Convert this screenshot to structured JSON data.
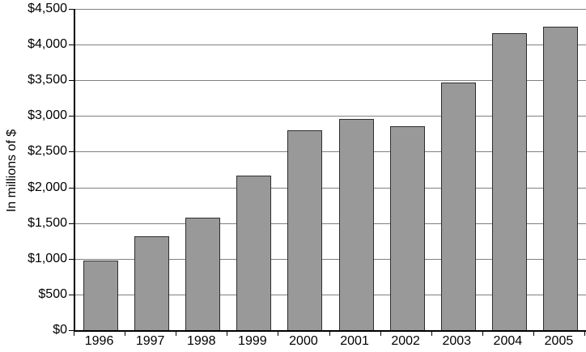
{
  "chart_data": {
    "type": "bar",
    "title": "",
    "xlabel": "",
    "ylabel": "In millions of $",
    "categories": [
      "1996",
      "1997",
      "1998",
      "1999",
      "2000",
      "2001",
      "2002",
      "2003",
      "2004",
      "2005"
    ],
    "values": [
      980,
      1310,
      1580,
      2160,
      2800,
      2960,
      2860,
      3470,
      4160,
      4250
    ],
    "ylim": [
      0,
      4500
    ],
    "ytick_step": 500,
    "ytick_labels": [
      "$0",
      "$500",
      "$1,000",
      "$1,500",
      "$2,000",
      "$2,500",
      "$3,000",
      "$3,500",
      "$4,000",
      "$4,500"
    ],
    "grid": true,
    "legend": "none",
    "colors": {
      "bar_fill": "#999999",
      "bar_border": "#2e2e2e",
      "gridline": "#808080",
      "axis": "#000000",
      "text": "#000000",
      "background": "#ffffff"
    }
  }
}
